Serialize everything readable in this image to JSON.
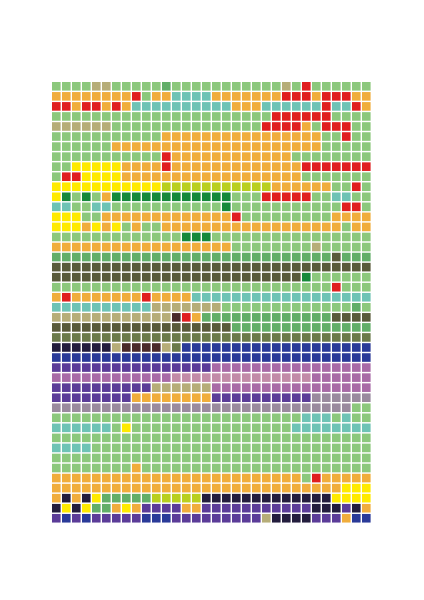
{
  "mosaic": {
    "columns": 32,
    "rows": 44
  }
}
